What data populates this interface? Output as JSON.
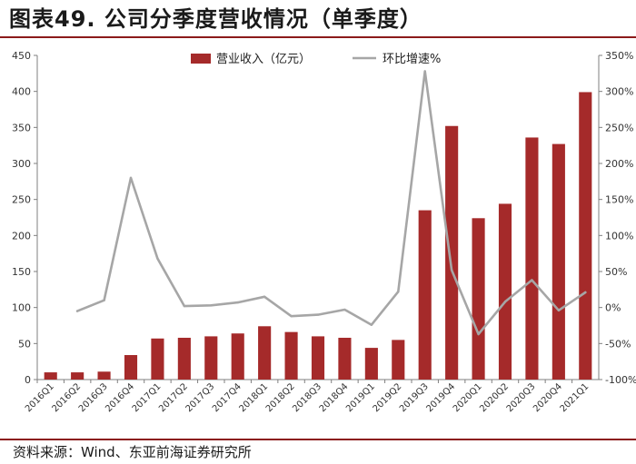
{
  "figure": {
    "title": "图表49. 公司分季度营收情况（单季度）",
    "source": "资料来源：Wind、东亚前海证券研究所"
  },
  "chart_data": {
    "type": "bar",
    "categories": [
      "2016Q1",
      "2016Q2",
      "2016Q3",
      "2016Q4",
      "2017Q1",
      "2017Q2",
      "2017Q3",
      "2017Q4",
      "2018Q1",
      "2018Q2",
      "2018Q3",
      "2018Q4",
      "2019Q1",
      "2019Q2",
      "2019Q3",
      "2019Q4",
      "2020Q1",
      "2020Q2",
      "2020Q3",
      "2020Q4",
      "2021Q1"
    ],
    "series": [
      {
        "name": "营业收入（亿元）",
        "type": "bar",
        "axis": "left",
        "color": "#a52a2a",
        "values": [
          10,
          10,
          11,
          34,
          57,
          58,
          60,
          64,
          74,
          66,
          60,
          58,
          44,
          55,
          235,
          352,
          224,
          244,
          336,
          327,
          399
        ]
      },
      {
        "name": "环比增速%",
        "type": "line",
        "axis": "right",
        "color": "#a6a6a6",
        "values": [
          null,
          -5,
          10,
          180,
          68,
          2,
          3,
          7,
          15,
          -12,
          -10,
          -3,
          -24,
          22,
          328,
          52,
          -37,
          8,
          38,
          -4,
          21
        ]
      }
    ],
    "y_left": {
      "min": 0,
      "max": 450,
      "step": 50,
      "ticks": [
        "0",
        "50",
        "100",
        "150",
        "200",
        "250",
        "300",
        "350",
        "400",
        "450"
      ]
    },
    "y_right": {
      "min": -100,
      "max": 350,
      "step": 50,
      "ticks": [
        "-100%",
        "-50%",
        "0%",
        "50%",
        "100%",
        "150%",
        "200%",
        "250%",
        "300%",
        "350%"
      ]
    },
    "legend": {
      "position": "top-center"
    },
    "grid": false
  }
}
